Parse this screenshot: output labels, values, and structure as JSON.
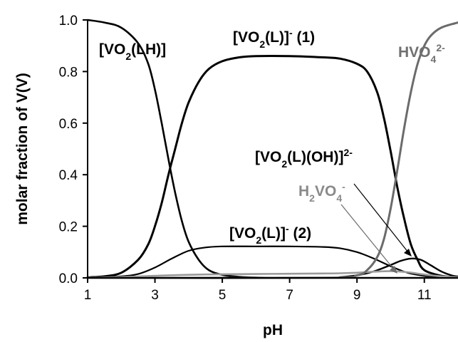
{
  "chart_data": {
    "type": "line",
    "xlabel": "pH",
    "ylabel": "molar fraction of V(V)",
    "xlim": [
      1,
      12
    ],
    "ylim": [
      0,
      1
    ],
    "x_ticks": [
      "1",
      "3",
      "5",
      "7",
      "9",
      "11"
    ],
    "y_ticks": [
      "0.0",
      "0.2",
      "0.4",
      "0.6",
      "0.8",
      "1.0"
    ],
    "grid": false,
    "colors": {
      "black_series": "#000000",
      "gray_series": "#6b6b6b",
      "light_gray_series": "#9a9a9a",
      "axes": "#000000"
    },
    "series": [
      {
        "name": "[VO2(LH)]",
        "x": [
          1,
          1.5,
          2,
          2.5,
          2.8,
          3,
          3.2,
          3.4,
          3.6,
          3.8,
          4,
          4.3,
          4.6,
          5,
          5.5,
          6,
          7,
          8,
          9,
          10,
          11,
          12
        ],
        "y": [
          1.0,
          0.99,
          0.97,
          0.91,
          0.83,
          0.73,
          0.6,
          0.46,
          0.33,
          0.22,
          0.14,
          0.07,
          0.03,
          0.012,
          0.004,
          0.001,
          0,
          0,
          0,
          0,
          0,
          0
        ]
      },
      {
        "name": "[VO2(L)]- (1)",
        "x": [
          1,
          1.5,
          2,
          2.5,
          2.8,
          3,
          3.2,
          3.4,
          3.6,
          3.8,
          4,
          4.3,
          4.6,
          5,
          5.5,
          6,
          7,
          8,
          8.5,
          9,
          9.3,
          9.6,
          9.8,
          10,
          10.2,
          10.4,
          10.6,
          10.8,
          11,
          11.5,
          12
        ],
        "y": [
          0.002,
          0.006,
          0.02,
          0.07,
          0.13,
          0.2,
          0.29,
          0.4,
          0.5,
          0.6,
          0.68,
          0.76,
          0.81,
          0.84,
          0.855,
          0.86,
          0.86,
          0.855,
          0.85,
          0.83,
          0.8,
          0.72,
          0.62,
          0.49,
          0.35,
          0.23,
          0.13,
          0.07,
          0.03,
          0.008,
          0.002
        ]
      },
      {
        "name": "[VO2(L)]- (2)",
        "x": [
          1,
          2,
          2.5,
          3,
          3.5,
          4,
          4.5,
          5,
          6,
          7,
          8,
          8.5,
          9,
          9.5,
          10,
          10.5,
          11,
          11.5,
          12
        ],
        "y": [
          0.0,
          0.006,
          0.015,
          0.04,
          0.075,
          0.105,
          0.118,
          0.122,
          0.122,
          0.122,
          0.12,
          0.115,
          0.1,
          0.075,
          0.045,
          0.02,
          0.008,
          0.003,
          0.001
        ]
      },
      {
        "name": "[VO2(L)(OH)]2-",
        "x": [
          1,
          8,
          8.5,
          9,
          9.5,
          10,
          10.3,
          10.6,
          10.9,
          11.2,
          11.5,
          11.8,
          12
        ],
        "y": [
          0,
          0.001,
          0.003,
          0.01,
          0.025,
          0.05,
          0.066,
          0.075,
          0.07,
          0.048,
          0.025,
          0.01,
          0.005
        ]
      },
      {
        "name": "H2VO4-",
        "x": [
          1,
          2,
          3,
          4,
          5,
          6,
          7,
          8,
          8.5,
          9,
          9.5,
          10,
          10.5,
          11,
          11.5,
          12
        ],
        "y": [
          0,
          0.003,
          0.008,
          0.012,
          0.014,
          0.015,
          0.016,
          0.017,
          0.018,
          0.02,
          0.024,
          0.026,
          0.022,
          0.013,
          0.006,
          0.002
        ]
      },
      {
        "name": "HVO42-",
        "x": [
          1,
          8,
          9,
          9.3,
          9.6,
          9.8,
          10,
          10.2,
          10.4,
          10.6,
          10.8,
          11,
          11.2,
          11.5,
          12
        ],
        "y": [
          0,
          0,
          0.01,
          0.03,
          0.08,
          0.15,
          0.27,
          0.42,
          0.58,
          0.72,
          0.83,
          0.9,
          0.94,
          0.97,
          0.99
        ]
      }
    ],
    "annotations": [
      {
        "text": "[VO2(LH)]"
      },
      {
        "text": "[VO2(L)]- (1)"
      },
      {
        "text": "HVO42-"
      },
      {
        "text": "[VO2(L)(OH)]2-"
      },
      {
        "text": "H2VO4-"
      },
      {
        "text": "[VO2(L)]- (2)"
      }
    ]
  }
}
